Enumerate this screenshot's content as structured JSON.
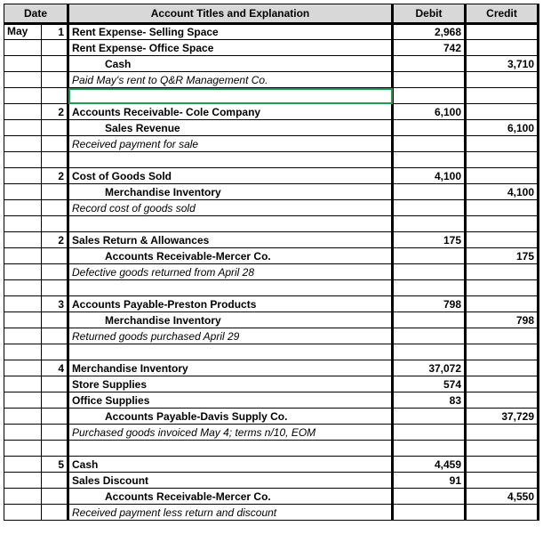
{
  "headers": {
    "date": "Date",
    "acct": "Account Titles and Explanation",
    "debit": "Debit",
    "credit": "Credit"
  },
  "month": "May",
  "entries": [
    {
      "day": "1",
      "lines": [
        {
          "label": "Rent Expense- Selling Space",
          "debit": "2,968",
          "credit": "",
          "style": "bold"
        },
        {
          "label": "Rent Expense- Office Space",
          "debit": "742",
          "credit": "",
          "style": "bold"
        },
        {
          "label": "Cash",
          "debit": "",
          "credit": "3,710",
          "style": "bold indent1"
        },
        {
          "label": "Paid May's rent to Q&R Management Co.",
          "debit": "",
          "credit": "",
          "style": "italic"
        }
      ]
    },
    {
      "day": "2",
      "lines": [
        {
          "label": "Accounts Receivable- Cole Company",
          "debit": "6,100",
          "credit": "",
          "style": "bold"
        },
        {
          "label": "Sales Revenue",
          "debit": "",
          "credit": "6,100",
          "style": "bold indent1"
        },
        {
          "label": "Received payment for sale",
          "debit": "",
          "credit": "",
          "style": "italic"
        }
      ]
    },
    {
      "day": "2",
      "lines": [
        {
          "label": "Cost of Goods Sold",
          "debit": "4,100",
          "credit": "",
          "style": "bold"
        },
        {
          "label": "Merchandise Inventory",
          "debit": "",
          "credit": "4,100",
          "style": "bold indent1"
        },
        {
          "label": "Record cost of goods sold",
          "debit": "",
          "credit": "",
          "style": "italic"
        }
      ]
    },
    {
      "day": "2",
      "lines": [
        {
          "label": "Sales Return & Allowances",
          "debit": "175",
          "credit": "",
          "style": "bold"
        },
        {
          "label": "Accounts Receivable-Mercer Co.",
          "debit": "",
          "credit": "175",
          "style": "bold indent1"
        },
        {
          "label": "Defective goods returned from April 28",
          "debit": "",
          "credit": "",
          "style": "italic"
        }
      ]
    },
    {
      "day": "3",
      "lines": [
        {
          "label": "Accounts Payable-Preston Products",
          "debit": "798",
          "credit": "",
          "style": "bold"
        },
        {
          "label": "Merchandise Inventory",
          "debit": "",
          "credit": "798",
          "style": "bold indent1"
        },
        {
          "label": "Returned goods purchased April 29",
          "debit": "",
          "credit": "",
          "style": "italic"
        }
      ]
    },
    {
      "day": "4",
      "lines": [
        {
          "label": "Merchandise Inventory",
          "debit": "37,072",
          "credit": "",
          "style": "bold"
        },
        {
          "label": "Store Supplies",
          "debit": "574",
          "credit": "",
          "style": "bold"
        },
        {
          "label": "Office Supplies",
          "debit": "83",
          "credit": "",
          "style": "bold"
        },
        {
          "label": "Accounts Payable-Davis Supply Co.",
          "debit": "",
          "credit": "37,729",
          "style": "bold indent1"
        },
        {
          "label": "Purchased goods invoiced May 4; terms n/10, EOM",
          "debit": "",
          "credit": "",
          "style": "italic"
        }
      ]
    },
    {
      "day": "5",
      "lines": [
        {
          "label": "Cash",
          "debit": "4,459",
          "credit": "",
          "style": "bold"
        },
        {
          "label": "Sales Discount",
          "debit": "91",
          "credit": "",
          "style": "bold"
        },
        {
          "label": "Accounts Receivable-Mercer Co.",
          "debit": "",
          "credit": "4,550",
          "style": "bold indent1"
        },
        {
          "label": "Received payment less return and discount",
          "debit": "",
          "credit": "",
          "style": "italic"
        }
      ]
    }
  ],
  "colors": {
    "header_bg": "#d8d8d8",
    "border": "#000000",
    "selection": "#1a9c55"
  }
}
